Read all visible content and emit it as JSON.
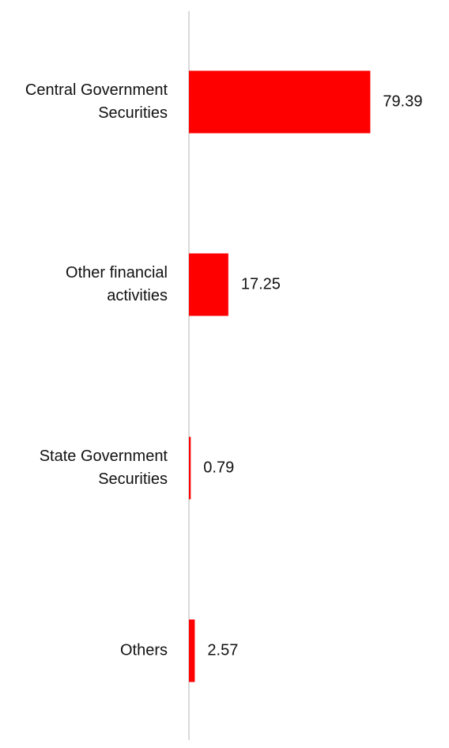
{
  "chart_data": {
    "type": "bar",
    "orientation": "horizontal",
    "title": "",
    "xlabel": "",
    "ylabel": "",
    "categories": [
      [
        "Central Government",
        "Securities"
      ],
      [
        "Other financial",
        "activities"
      ],
      [
        "State Government",
        "Securities"
      ],
      [
        "Others"
      ]
    ],
    "values": [
      79.39,
      17.25,
      0.79,
      2.57
    ],
    "value_labels": [
      "79.39",
      "17.25",
      "0.79",
      "2.57"
    ],
    "xlim": [
      0,
      100
    ],
    "grid": false,
    "legend": "none",
    "bar_color": "#ff0000",
    "axis_color": "#d9d9d9"
  }
}
